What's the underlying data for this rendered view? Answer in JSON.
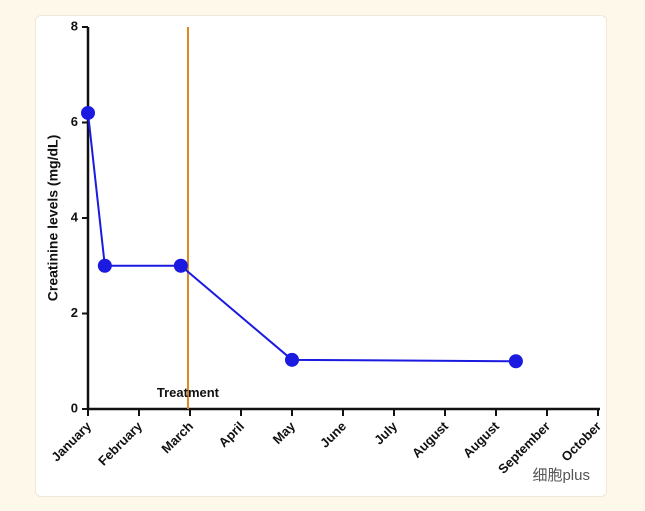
{
  "chart_data": {
    "type": "line",
    "y_label": "Creatinine levels (mg/dL)",
    "categories": [
      "January",
      "February",
      "March",
      "April",
      "May",
      "June",
      "July",
      "August",
      "August",
      "September",
      "October"
    ],
    "xlim": [
      0,
      10
    ],
    "x": [
      0,
      0.33,
      1.82,
      4,
      8.39
    ],
    "series": [
      {
        "color": "#1a1ae0",
        "values": [
          6.2,
          3,
          3,
          1.03,
          1.0
        ]
      }
    ],
    "ylim": [
      0,
      8
    ],
    "yticks": [
      0,
      2,
      4,
      6,
      8
    ],
    "vline": {
      "x": 1.96,
      "label": "Treatment",
      "color": "#d88a1e"
    },
    "watermark": "细胞plus"
  }
}
